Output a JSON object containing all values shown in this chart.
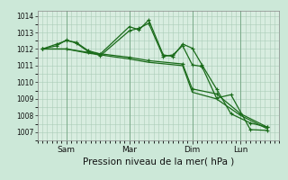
{
  "background_color": "#cce8d8",
  "plot_bg_color": "#d8ede0",
  "grid_color": "#aaccb8",
  "line_color": "#1a6b1a",
  "ylabel_range": [
    1006.5,
    1014.3
  ],
  "yticks": [
    1007,
    1008,
    1009,
    1010,
    1011,
    1012,
    1013,
    1014
  ],
  "xlabel": "Pression niveau de la mer( hPa )",
  "xtick_labels": [
    "Sam",
    "Mar",
    "Dim",
    "Lun"
  ],
  "xtick_positions": [
    0.12,
    0.38,
    0.64,
    0.84
  ],
  "series1_x": [
    0.02,
    0.08,
    0.12,
    0.16,
    0.21,
    0.26,
    0.38,
    0.42,
    0.46,
    0.52,
    0.56,
    0.6,
    0.64,
    0.68,
    0.74,
    0.8,
    0.88,
    0.95
  ],
  "series1_y": [
    1012.0,
    1012.3,
    1012.5,
    1012.4,
    1011.9,
    1011.7,
    1013.35,
    1013.15,
    1013.75,
    1011.65,
    1011.55,
    1012.3,
    1012.05,
    1011.05,
    1009.6,
    1008.1,
    1007.55,
    1007.3
  ],
  "series2_x": [
    0.02,
    0.08,
    0.12,
    0.16,
    0.21,
    0.26,
    0.38,
    0.42,
    0.46,
    0.52,
    0.56,
    0.6,
    0.64,
    0.68,
    0.74,
    0.8,
    0.88,
    0.95
  ],
  "series2_y": [
    1012.0,
    1012.2,
    1012.55,
    1012.35,
    1011.85,
    1011.6,
    1013.1,
    1013.25,
    1013.55,
    1011.55,
    1011.65,
    1012.2,
    1011.05,
    1010.95,
    1009.05,
    1009.25,
    1007.15,
    1007.1
  ],
  "series3_x": [
    0.02,
    0.12,
    0.21,
    0.38,
    0.46,
    0.6,
    0.64,
    0.74,
    0.84,
    0.95
  ],
  "series3_y": [
    1012.0,
    1012.0,
    1011.8,
    1011.5,
    1011.3,
    1011.1,
    1009.6,
    1009.3,
    1008.1,
    1007.3
  ],
  "series4_x": [
    0.02,
    0.12,
    0.21,
    0.38,
    0.46,
    0.6,
    0.64,
    0.74,
    0.84,
    0.95
  ],
  "series4_y": [
    1012.0,
    1012.0,
    1011.75,
    1011.4,
    1011.2,
    1011.0,
    1009.4,
    1009.0,
    1008.0,
    1007.2
  ]
}
